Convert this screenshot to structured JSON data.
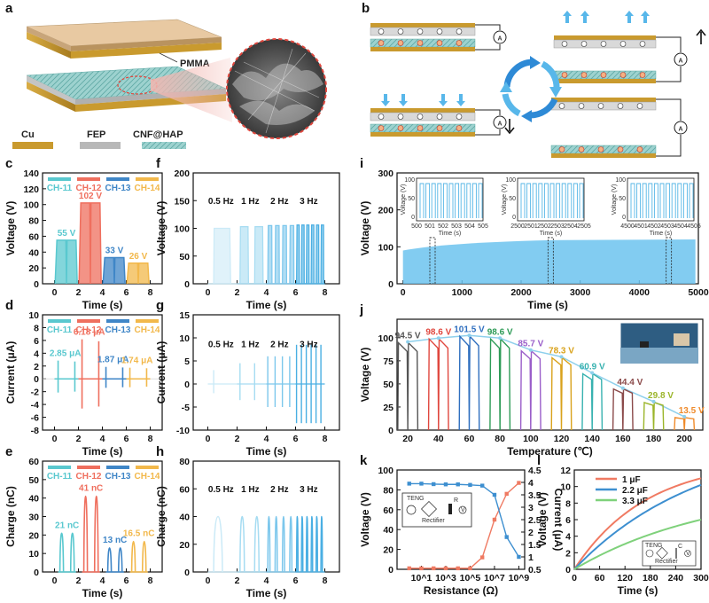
{
  "panels": {
    "a": "a",
    "b": "b",
    "c": "c",
    "d": "d",
    "e": "e",
    "f": "f",
    "g": "g",
    "h": "h",
    "i": "i",
    "j": "j",
    "k": "k",
    "l": "l"
  },
  "schematic_a": {
    "pmma": "PMMA",
    "legend": [
      "Cu",
      "FEP",
      "CNF@HAP"
    ],
    "colors": {
      "cu": "#c99a2e",
      "fep": "#b8b8b8",
      "cnf": "#9fd3d0"
    }
  },
  "schematic_b": {
    "meter": "A"
  },
  "series_colors": {
    "ch11": "#59c8cf",
    "ch12": "#ef6f5e",
    "ch13": "#3f86c7",
    "ch14": "#f2b84b",
    "freq": "#5bb8e6",
    "temp_fit": "#8ed0ec",
    "k_voltage": "#ef7a62",
    "k_current": "#3d8fd0",
    "l_1uF": "#f07a62",
    "l_22uF": "#3d8fd0",
    "l_33uF": "#7fd17b"
  },
  "chart_data": [
    {
      "id": "c",
      "type": "bar",
      "xlabel": "Time (s)",
      "ylabel": "Voltage (V)",
      "xlim": [
        -1,
        9
      ],
      "ylim": [
        0,
        140
      ],
      "xticks": [
        0,
        2,
        4,
        6,
        8
      ],
      "yticks": [
        0,
        20,
        40,
        60,
        80,
        100,
        120,
        140
      ],
      "series": [
        {
          "name": "CH-11",
          "value": 55,
          "label": "55 V",
          "interval": [
            0.2,
            1.8
          ]
        },
        {
          "name": "CH-12",
          "value": 102,
          "label": "102 V",
          "interval": [
            2.2,
            3.8
          ]
        },
        {
          "name": "CH-13",
          "value": 33,
          "label": "33 V",
          "interval": [
            4.2,
            5.8
          ]
        },
        {
          "name": "CH-14",
          "value": 26,
          "label": "26 V",
          "interval": [
            6.2,
            7.8
          ]
        }
      ]
    },
    {
      "id": "d",
      "type": "line",
      "xlabel": "Time (s)",
      "ylabel": "Current (μA)",
      "xlim": [
        -1,
        9
      ],
      "ylim": [
        -8,
        10
      ],
      "xticks": [
        0,
        2,
        4,
        6,
        8
      ],
      "yticks": [
        -8,
        -6,
        -4,
        -2,
        0,
        2,
        4,
        6,
        8,
        10
      ],
      "series": [
        {
          "name": "CH-11",
          "peak": 2.85,
          "label": "2.85 μA"
        },
        {
          "name": "CH-12",
          "peak": 6.18,
          "label": "6.18 μA"
        },
        {
          "name": "CH-13",
          "peak": 1.87,
          "label": "1.87 μA"
        },
        {
          "name": "CH-14",
          "peak": 1.74,
          "label": "1.74 μA"
        }
      ]
    },
    {
      "id": "e",
      "type": "line",
      "xlabel": "Time (s)",
      "ylabel": "Charge (nC)",
      "xlim": [
        -1,
        9
      ],
      "ylim": [
        0,
        60
      ],
      "xticks": [
        0,
        2,
        4,
        6,
        8
      ],
      "yticks": [
        0,
        10,
        20,
        30,
        40,
        50,
        60
      ],
      "series": [
        {
          "name": "CH-11",
          "peak": 21,
          "label": "21 nC"
        },
        {
          "name": "CH-12",
          "peak": 41,
          "label": "41 nC"
        },
        {
          "name": "CH-13",
          "peak": 13,
          "label": "13 nC"
        },
        {
          "name": "CH-14",
          "peak": 16.5,
          "label": "16.5 nC"
        }
      ]
    },
    {
      "id": "f",
      "type": "line",
      "xlabel": "Time (s)",
      "ylabel": "Voltage (V)",
      "xlim": [
        -1,
        9
      ],
      "ylim": [
        0,
        200
      ],
      "xticks": [
        0,
        2,
        4,
        6,
        8
      ],
      "yticks": [
        0,
        50,
        100,
        150,
        200
      ],
      "segments": [
        {
          "label": "0.5 Hz",
          "freq": 0.5
        },
        {
          "label": "1 Hz",
          "freq": 1
        },
        {
          "label": "2 Hz",
          "freq": 2
        },
        {
          "label": "3 Hz",
          "freq": 3
        }
      ],
      "values": [
        100,
        103,
        105,
        106
      ]
    },
    {
      "id": "g",
      "type": "line",
      "xlabel": "Time (s)",
      "ylabel": "Current (μA)",
      "xlim": [
        -1,
        9
      ],
      "ylim": [
        -10,
        15
      ],
      "xticks": [
        0,
        2,
        4,
        6,
        8
      ],
      "yticks": [
        -10,
        -5,
        0,
        5,
        10,
        15
      ],
      "segments": [
        {
          "label": "0.5 Hz",
          "freq": 0.5
        },
        {
          "label": "1 Hz",
          "freq": 1
        },
        {
          "label": "2 Hz",
          "freq": 2
        },
        {
          "label": "3 Hz",
          "freq": 3
        }
      ],
      "peaks": [
        3,
        4.5,
        6,
        8.5
      ],
      "troughs": [
        -2,
        -3.5,
        -5,
        -8.5
      ]
    },
    {
      "id": "h",
      "type": "line",
      "xlabel": "Time (s)",
      "ylabel": "Charge (nC)",
      "xlim": [
        -1,
        9
      ],
      "ylim": [
        0,
        80
      ],
      "xticks": [
        0,
        2,
        4,
        6,
        8
      ],
      "yticks": [
        0,
        20,
        40,
        60,
        80
      ],
      "segments": [
        {
          "label": "0.5 Hz",
          "freq": 0.5
        },
        {
          "label": "1 Hz",
          "freq": 1
        },
        {
          "label": "2 Hz",
          "freq": 2
        },
        {
          "label": "3 Hz",
          "freq": 3
        }
      ],
      "values": [
        40,
        40,
        40,
        40
      ]
    },
    {
      "id": "i",
      "type": "area",
      "xlabel": "Time (s)",
      "ylabel": "Voltage (V)",
      "xlim": [
        -100,
        5000
      ],
      "ylim": [
        0,
        300
      ],
      "xticks": [
        0,
        1000,
        2000,
        3000,
        4000,
        5000
      ],
      "yticks": [
        0,
        100,
        200,
        300
      ],
      "band": {
        "start_v": 90,
        "end_v": 120
      },
      "insets": [
        {
          "xticks": [
            "500",
            "501",
            "502",
            "503",
            "504",
            "505"
          ],
          "ylabel": "Voltage (V)",
          "xlabel": "Time (s)",
          "yticks": [
            "0",
            "50",
            "100"
          ]
        },
        {
          "xticks": [
            "2500",
            "2501",
            "2502",
            "2503",
            "2504",
            "2505"
          ],
          "ylabel": "Voltage (V)",
          "xlabel": "Time (s)",
          "yticks": [
            "0",
            "50",
            "100"
          ]
        },
        {
          "xticks": [
            "4500",
            "4501",
            "4502",
            "4503",
            "4504",
            "4505"
          ],
          "ylabel": "Voltage (V)",
          "xlabel": "Time (s)",
          "yticks": [
            "0",
            "50",
            "100"
          ]
        }
      ]
    },
    {
      "id": "j",
      "type": "line",
      "xlabel": "Temperature (℃)",
      "ylabel": "Voltage (V)",
      "xlim": [
        13,
        212
      ],
      "ylim": [
        0,
        120
      ],
      "xticks": [
        20,
        40,
        60,
        80,
        100,
        120,
        140,
        160,
        180,
        200
      ],
      "yticks": [
        0,
        25,
        50,
        75,
        100
      ],
      "points": [
        {
          "t": 20,
          "v": 94.5,
          "label": "94.5 V",
          "color": "#555555"
        },
        {
          "t": 40,
          "v": 98.6,
          "label": "98.6 V",
          "color": "#e0473e"
        },
        {
          "t": 60,
          "v": 101.5,
          "label": "101.5 V",
          "color": "#2f6fbf"
        },
        {
          "t": 80,
          "v": 98.6,
          "label": "98.6 V",
          "color": "#2e9b57"
        },
        {
          "t": 100,
          "v": 85.7,
          "label": "85.7 V",
          "color": "#9a5ec9"
        },
        {
          "t": 120,
          "v": 78.3,
          "label": "78.3 V",
          "color": "#d9a21b"
        },
        {
          "t": 140,
          "v": 60.9,
          "label": "60.9 V",
          "color": "#38b2b0"
        },
        {
          "t": 160,
          "v": 44.4,
          "label": "44.4 V",
          "color": "#8b4a4a"
        },
        {
          "t": 180,
          "v": 29.8,
          "label": "29.8 V",
          "color": "#9bb52a"
        },
        {
          "t": 200,
          "v": 13.5,
          "label": "13.5 V",
          "color": "#ef8a2a"
        }
      ]
    },
    {
      "id": "k",
      "type": "line",
      "xlabel": "Resistance (Ω)",
      "ylabel": "Voltage (V)",
      "y2label": "Current (μA)",
      "xscale": "log",
      "xlim": [
        0.1,
        3000000000.0
      ],
      "ylim": [
        0,
        100
      ],
      "y2lim": [
        0.5,
        4.5
      ],
      "xticks": [
        "10^1",
        "10^3",
        "10^5",
        "10^7",
        "10^9"
      ],
      "yticks": [
        0,
        20,
        40,
        60,
        80,
        100
      ],
      "y2ticks": [
        0.5,
        1.0,
        1.5,
        2.0,
        2.5,
        3.0,
        3.5,
        4.0,
        4.5
      ],
      "x": [
        1,
        10,
        100,
        1000,
        10000,
        100000,
        1000000,
        10000000,
        100000000,
        1000000000
      ],
      "series": [
        {
          "name": "Voltage",
          "values": [
            1,
            1,
            1,
            1,
            1,
            1,
            12,
            50,
            76,
            87
          ]
        },
        {
          "name": "Current",
          "values": [
            3.95,
            3.95,
            3.93,
            3.92,
            3.92,
            3.9,
            3.87,
            3.5,
            1.8,
            1.0
          ]
        }
      ],
      "circuit_labels": [
        "TENG",
        "Rectifier",
        "R",
        "V"
      ]
    },
    {
      "id": "l",
      "type": "line",
      "xlabel": "Time (s)",
      "ylabel": "Voltage (V)",
      "xlim": [
        0,
        300
      ],
      "ylim": [
        0,
        12
      ],
      "xticks": [
        0,
        60,
        120,
        180,
        240,
        300
      ],
      "yticks": [
        0,
        2,
        4,
        6,
        8,
        10,
        12
      ],
      "series": [
        {
          "name": "1 μF",
          "end": 11.0,
          "tau": 170
        },
        {
          "name": "2.2 μF",
          "end": 10.2,
          "tau": 300
        },
        {
          "name": "3.3 μF",
          "end": 6.0,
          "tau": 330
        }
      ],
      "circuit_labels": [
        "TENG",
        "Rectifier",
        "C",
        "V"
      ]
    }
  ]
}
